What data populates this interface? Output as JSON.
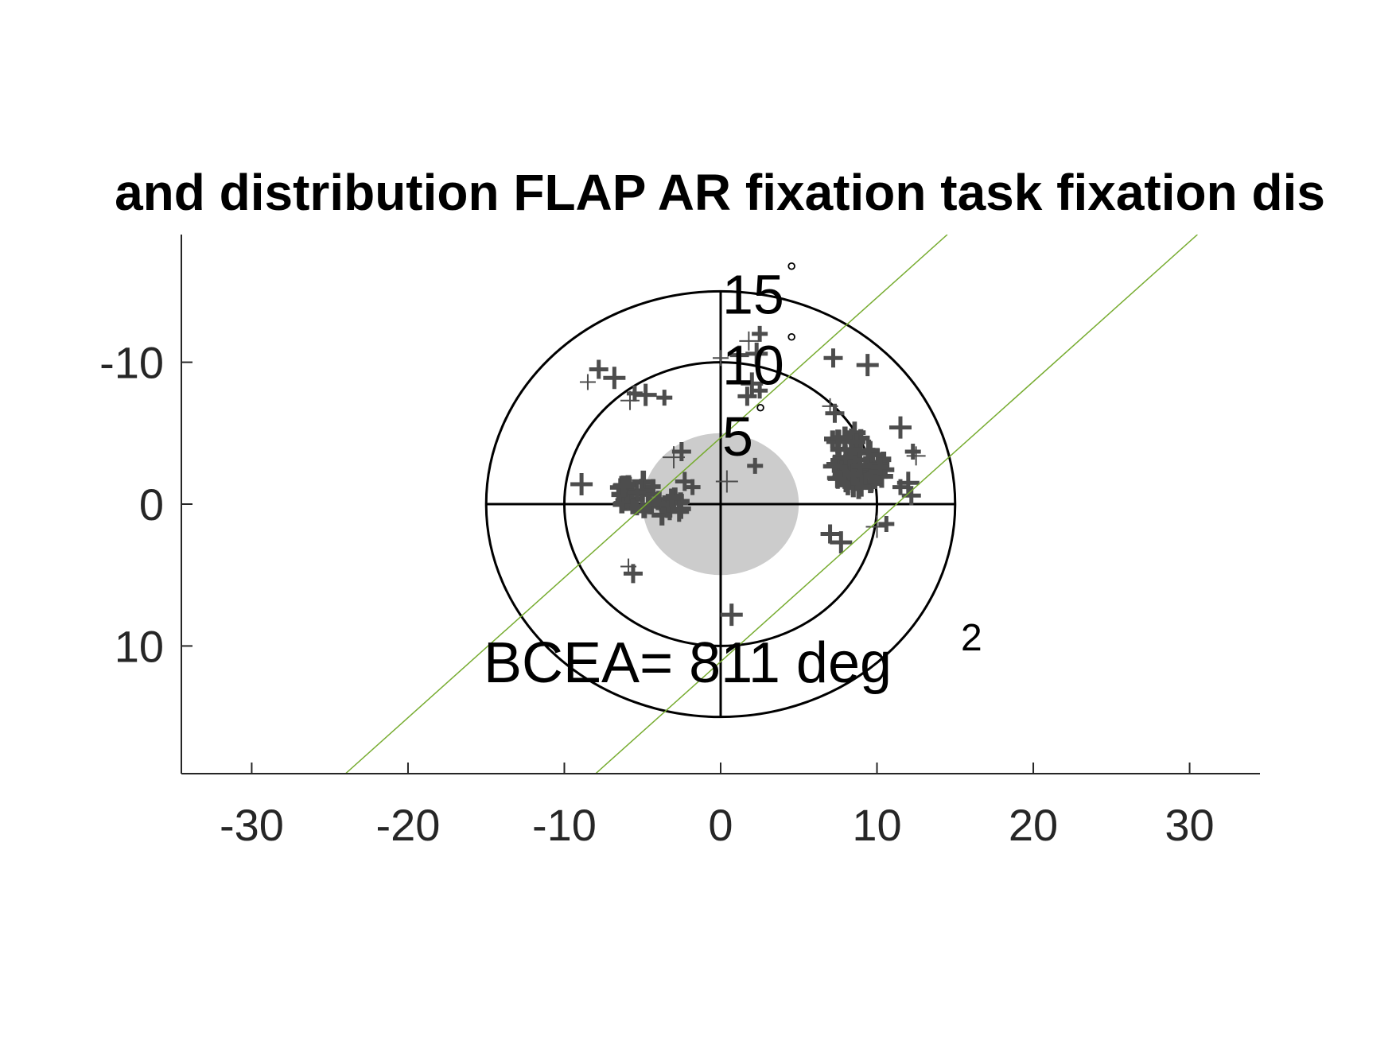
{
  "chart_data": {
    "type": "scatter",
    "title": "and distribution FLAP AR fixation task fixation dis",
    "xlabel": "",
    "ylabel": "",
    "xlim": [
      -34.5,
      34.5
    ],
    "ylim": [
      19,
      -19
    ],
    "y_axis_direction": "reversed",
    "xticks": [
      -30,
      -20,
      -10,
      0,
      10,
      20,
      30
    ],
    "xtick_labels": [
      "-30",
      "-20",
      "-10",
      "0",
      "10",
      "20",
      "30"
    ],
    "yticks": [
      -10,
      0,
      10
    ],
    "ytick_labels": [
      "-10",
      "0",
      "10"
    ],
    "grid": false,
    "legend": "none",
    "polar_rings": [
      {
        "radius": 5,
        "label": "5",
        "unit": "°"
      },
      {
        "radius": 10,
        "label": "10",
        "unit": "°"
      },
      {
        "radius": 15,
        "label": "15",
        "unit": "°"
      }
    ],
    "bcea_ellipse": {
      "center": [
        0,
        0
      ],
      "rx": 5,
      "ry": 5
    },
    "bcea_label": {
      "text": "BCEA= 811 deg",
      "superscript": "2"
    },
    "green_lines": [
      {
        "from": [
          -24,
          19
        ],
        "to": [
          14.5,
          -19
        ]
      },
      {
        "from": [
          -8,
          19
        ],
        "to": [
          30.5,
          -19
        ]
      }
    ],
    "clusters": [
      {
        "center": [
          -5.5,
          -0.5
        ],
        "spread": 1.4,
        "n": 26
      },
      {
        "center": [
          -3.5,
          0
        ],
        "spread": 1.0,
        "n": 12
      },
      {
        "center": [
          9,
          -2.5
        ],
        "spread": 1.6,
        "n": 60
      },
      {
        "center": [
          8,
          -4.5
        ],
        "spread": 1.0,
        "n": 10
      }
    ],
    "points": [
      {
        "x": -8.5,
        "y": -8.6
      },
      {
        "x": -7.8,
        "y": -9.5
      },
      {
        "x": -6.8,
        "y": -8.9
      },
      {
        "x": -5.5,
        "y": -7.8
      },
      {
        "x": -5.8,
        "y": -7.3
      },
      {
        "x": -4.8,
        "y": -7.7
      },
      {
        "x": -3.6,
        "y": -7.5
      },
      {
        "x": -2.5,
        "y": -3.7
      },
      {
        "x": -3.0,
        "y": -3.3
      },
      {
        "x": -1.8,
        "y": -1.2
      },
      {
        "x": -2.3,
        "y": -1.6
      },
      {
        "x": -8.9,
        "y": -1.4
      },
      {
        "x": 0.0,
        "y": -10.3
      },
      {
        "x": 1.2,
        "y": -10.5
      },
      {
        "x": 2.3,
        "y": -10.6
      },
      {
        "x": 2.5,
        "y": -12.0
      },
      {
        "x": 1.8,
        "y": -11.5
      },
      {
        "x": 2.0,
        "y": -8.5
      },
      {
        "x": 2.5,
        "y": -8.0
      },
      {
        "x": 1.7,
        "y": -7.6
      },
      {
        "x": 0.4,
        "y": -1.6
      },
      {
        "x": 2.2,
        "y": -2.7
      },
      {
        "x": 7.2,
        "y": -10.3
      },
      {
        "x": 9.4,
        "y": -9.8
      },
      {
        "x": 7.0,
        "y": -6.9
      },
      {
        "x": 7.3,
        "y": -6.4
      },
      {
        "x": 11.5,
        "y": -5.4
      },
      {
        "x": 12.3,
        "y": -3.7
      },
      {
        "x": 12.5,
        "y": -3.4
      },
      {
        "x": 12.0,
        "y": -1.5
      },
      {
        "x": 11.5,
        "y": -1.2
      },
      {
        "x": 12.2,
        "y": -0.6
      },
      {
        "x": 10.0,
        "y": 1.6
      },
      {
        "x": 10.6,
        "y": 1.4
      },
      {
        "x": 7.0,
        "y": 2.1
      },
      {
        "x": 7.7,
        "y": 2.7
      },
      {
        "x": -5.9,
        "y": 4.4
      },
      {
        "x": -5.6,
        "y": 4.9
      },
      {
        "x": 0.7,
        "y": 7.8
      }
    ]
  }
}
